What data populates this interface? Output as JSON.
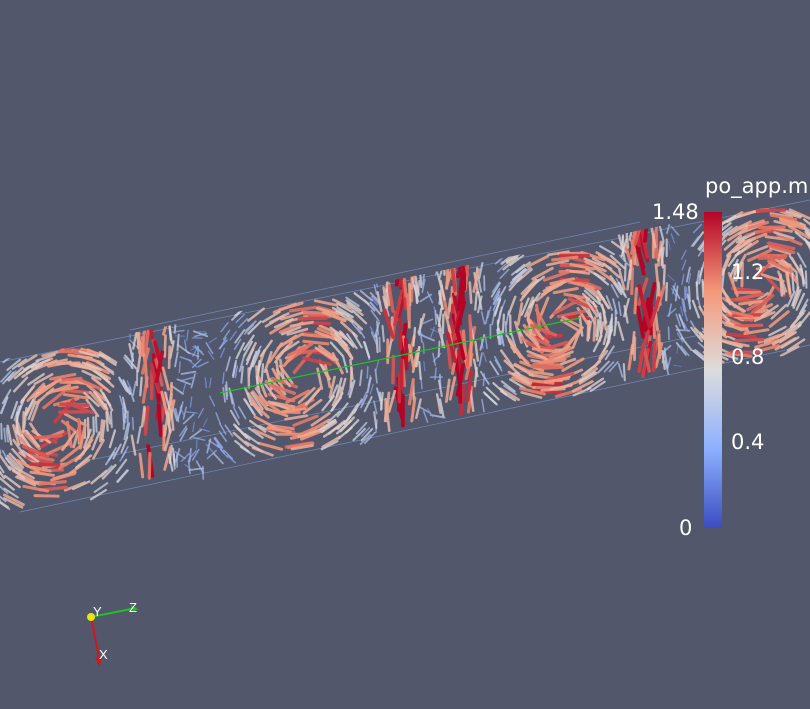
{
  "legend": {
    "title": "po_app.m",
    "ticks": [
      "1.48",
      "1.2",
      "0.8",
      "0.4",
      "0"
    ],
    "range": [
      0,
      1.48
    ],
    "colors": [
      "#3b4cc0",
      "#8db0fe",
      "#dddcdc",
      "#f4987a",
      "#b40426"
    ]
  },
  "orientation_axes": {
    "x": "X",
    "y": "Y",
    "z": "Z"
  },
  "background_color": "#52576b"
}
